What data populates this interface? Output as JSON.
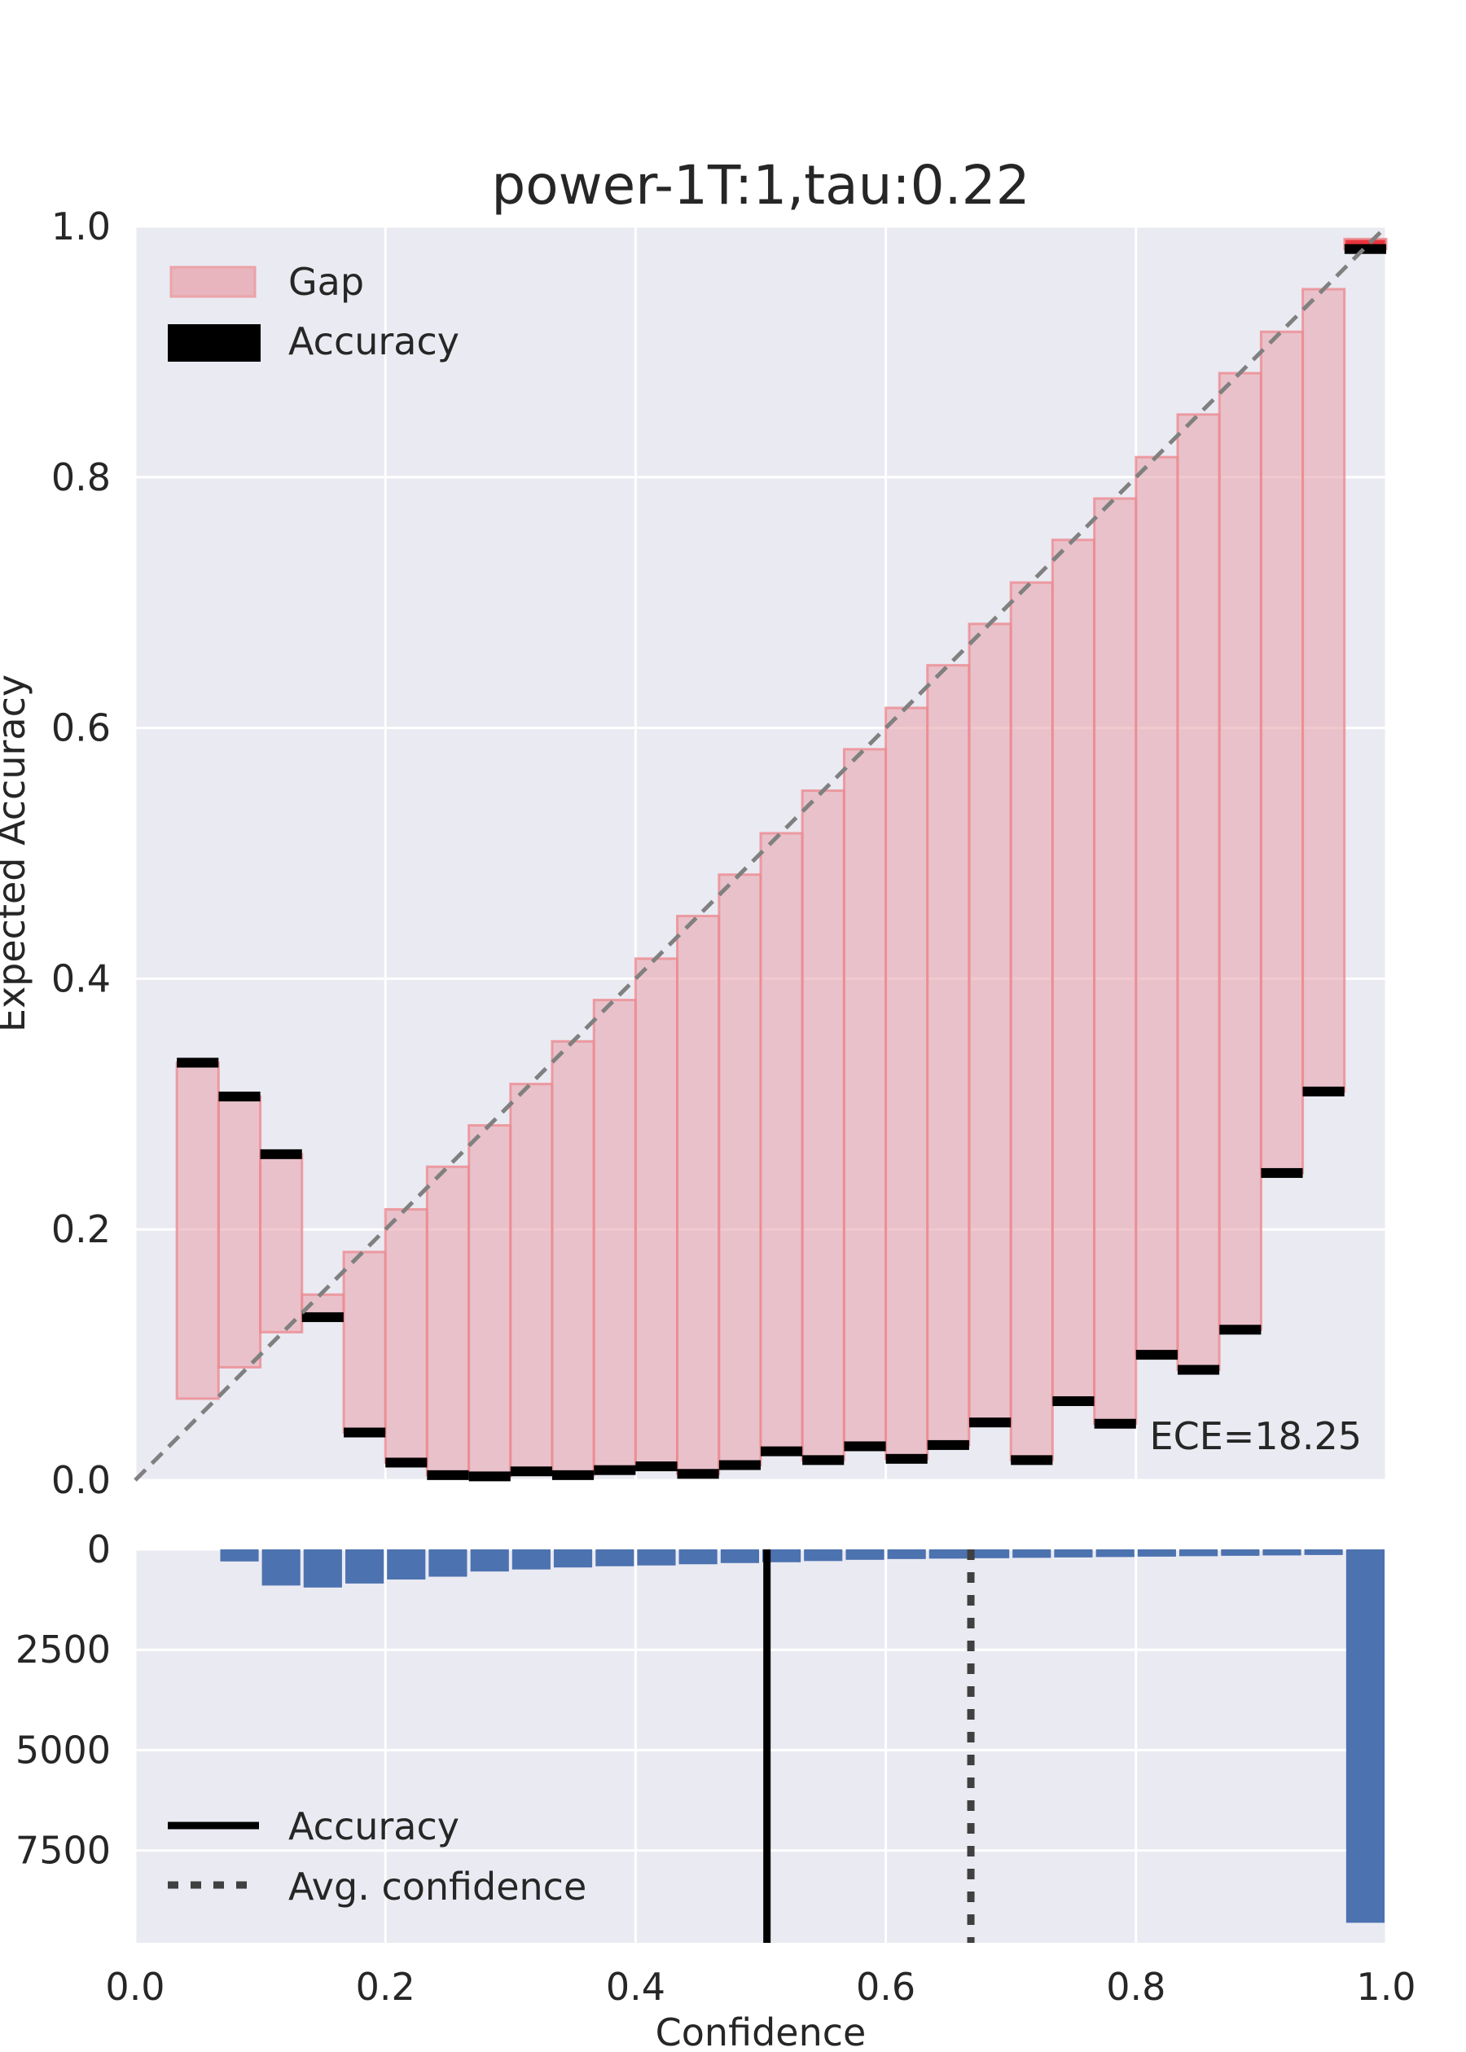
{
  "chart_data": [
    {
      "type": "bar",
      "title": "power-1T:1,tau:0.22",
      "xlabel": "",
      "ylabel": "Expected Accuracy",
      "xlim": [
        0,
        1
      ],
      "ylim": [
        0,
        1
      ],
      "yticks": [
        "0.0",
        "0.2",
        "0.4",
        "0.6",
        "0.8",
        "1.0"
      ],
      "grid": true,
      "legend_position": "top-left",
      "legend": {
        "gap_label": "Gap",
        "accuracy_label": "Accuracy"
      },
      "annotation": "ECE=18.25",
      "bin_width": 0.0333,
      "bins": [
        {
          "x": 0.0333,
          "confidence": 0.065,
          "accuracy": 0.333
        },
        {
          "x": 0.0667,
          "confidence": 0.09,
          "accuracy": 0.306
        },
        {
          "x": 0.1,
          "confidence": 0.118,
          "accuracy": 0.26
        },
        {
          "x": 0.1333,
          "confidence": 0.148,
          "accuracy": 0.13
        },
        {
          "x": 0.1667,
          "confidence": 0.182,
          "accuracy": 0.038
        },
        {
          "x": 0.2,
          "confidence": 0.216,
          "accuracy": 0.014
        },
        {
          "x": 0.2333,
          "confidence": 0.25,
          "accuracy": 0.004
        },
        {
          "x": 0.2667,
          "confidence": 0.283,
          "accuracy": 0.003
        },
        {
          "x": 0.3,
          "confidence": 0.316,
          "accuracy": 0.007
        },
        {
          "x": 0.3333,
          "confidence": 0.35,
          "accuracy": 0.004
        },
        {
          "x": 0.3667,
          "confidence": 0.383,
          "accuracy": 0.008
        },
        {
          "x": 0.4,
          "confidence": 0.416,
          "accuracy": 0.011
        },
        {
          "x": 0.4333,
          "confidence": 0.45,
          "accuracy": 0.005
        },
        {
          "x": 0.4667,
          "confidence": 0.483,
          "accuracy": 0.012
        },
        {
          "x": 0.5,
          "confidence": 0.516,
          "accuracy": 0.023
        },
        {
          "x": 0.5333,
          "confidence": 0.55,
          "accuracy": 0.016
        },
        {
          "x": 0.5667,
          "confidence": 0.583,
          "accuracy": 0.027
        },
        {
          "x": 0.6,
          "confidence": 0.616,
          "accuracy": 0.017
        },
        {
          "x": 0.6333,
          "confidence": 0.65,
          "accuracy": 0.028
        },
        {
          "x": 0.6667,
          "confidence": 0.683,
          "accuracy": 0.046
        },
        {
          "x": 0.7,
          "confidence": 0.716,
          "accuracy": 0.016
        },
        {
          "x": 0.7333,
          "confidence": 0.75,
          "accuracy": 0.063
        },
        {
          "x": 0.7667,
          "confidence": 0.783,
          "accuracy": 0.045
        },
        {
          "x": 0.8,
          "confidence": 0.816,
          "accuracy": 0.1
        },
        {
          "x": 0.8333,
          "confidence": 0.85,
          "accuracy": 0.088
        },
        {
          "x": 0.8667,
          "confidence": 0.883,
          "accuracy": 0.12
        },
        {
          "x": 0.9,
          "confidence": 0.916,
          "accuracy": 0.245
        },
        {
          "x": 0.9333,
          "confidence": 0.95,
          "accuracy": 0.31
        },
        {
          "x": 0.9667,
          "confidence": 0.99,
          "accuracy": 0.982
        }
      ]
    },
    {
      "type": "bar",
      "title": "",
      "xlabel": "Confidence",
      "ylabel": "",
      "xlim": [
        0,
        1
      ],
      "ylim": [
        0,
        9800
      ],
      "y_inverted": true,
      "xticks": [
        "0.0",
        "0.2",
        "0.4",
        "0.6",
        "0.8",
        "1.0"
      ],
      "yticks": [
        "0",
        "2500",
        "5000",
        "7500"
      ],
      "grid": true,
      "legend_position": "bottom-left",
      "legend": {
        "accuracy_label": "Accuracy",
        "avg_conf_label": "Avg. confidence"
      },
      "accuracy_line": 0.505,
      "avg_confidence_line": 0.668,
      "bin_width": 0.0333,
      "bins": [
        {
          "x": 0.0667,
          "count": 300
        },
        {
          "x": 0.1,
          "count": 900
        },
        {
          "x": 0.1333,
          "count": 950
        },
        {
          "x": 0.1667,
          "count": 850
        },
        {
          "x": 0.2,
          "count": 750
        },
        {
          "x": 0.2333,
          "count": 680
        },
        {
          "x": 0.2667,
          "count": 550
        },
        {
          "x": 0.3,
          "count": 500
        },
        {
          "x": 0.3333,
          "count": 450
        },
        {
          "x": 0.3667,
          "count": 420
        },
        {
          "x": 0.4,
          "count": 400
        },
        {
          "x": 0.4333,
          "count": 370
        },
        {
          "x": 0.4667,
          "count": 340
        },
        {
          "x": 0.5,
          "count": 320
        },
        {
          "x": 0.5333,
          "count": 290
        },
        {
          "x": 0.5667,
          "count": 260
        },
        {
          "x": 0.6,
          "count": 240
        },
        {
          "x": 0.6333,
          "count": 230
        },
        {
          "x": 0.6667,
          "count": 220
        },
        {
          "x": 0.7,
          "count": 210
        },
        {
          "x": 0.7333,
          "count": 200
        },
        {
          "x": 0.7667,
          "count": 190
        },
        {
          "x": 0.8,
          "count": 180
        },
        {
          "x": 0.8333,
          "count": 170
        },
        {
          "x": 0.8667,
          "count": 160
        },
        {
          "x": 0.9,
          "count": 150
        },
        {
          "x": 0.9333,
          "count": 140
        },
        {
          "x": 0.9667,
          "count": 9300
        }
      ]
    }
  ]
}
